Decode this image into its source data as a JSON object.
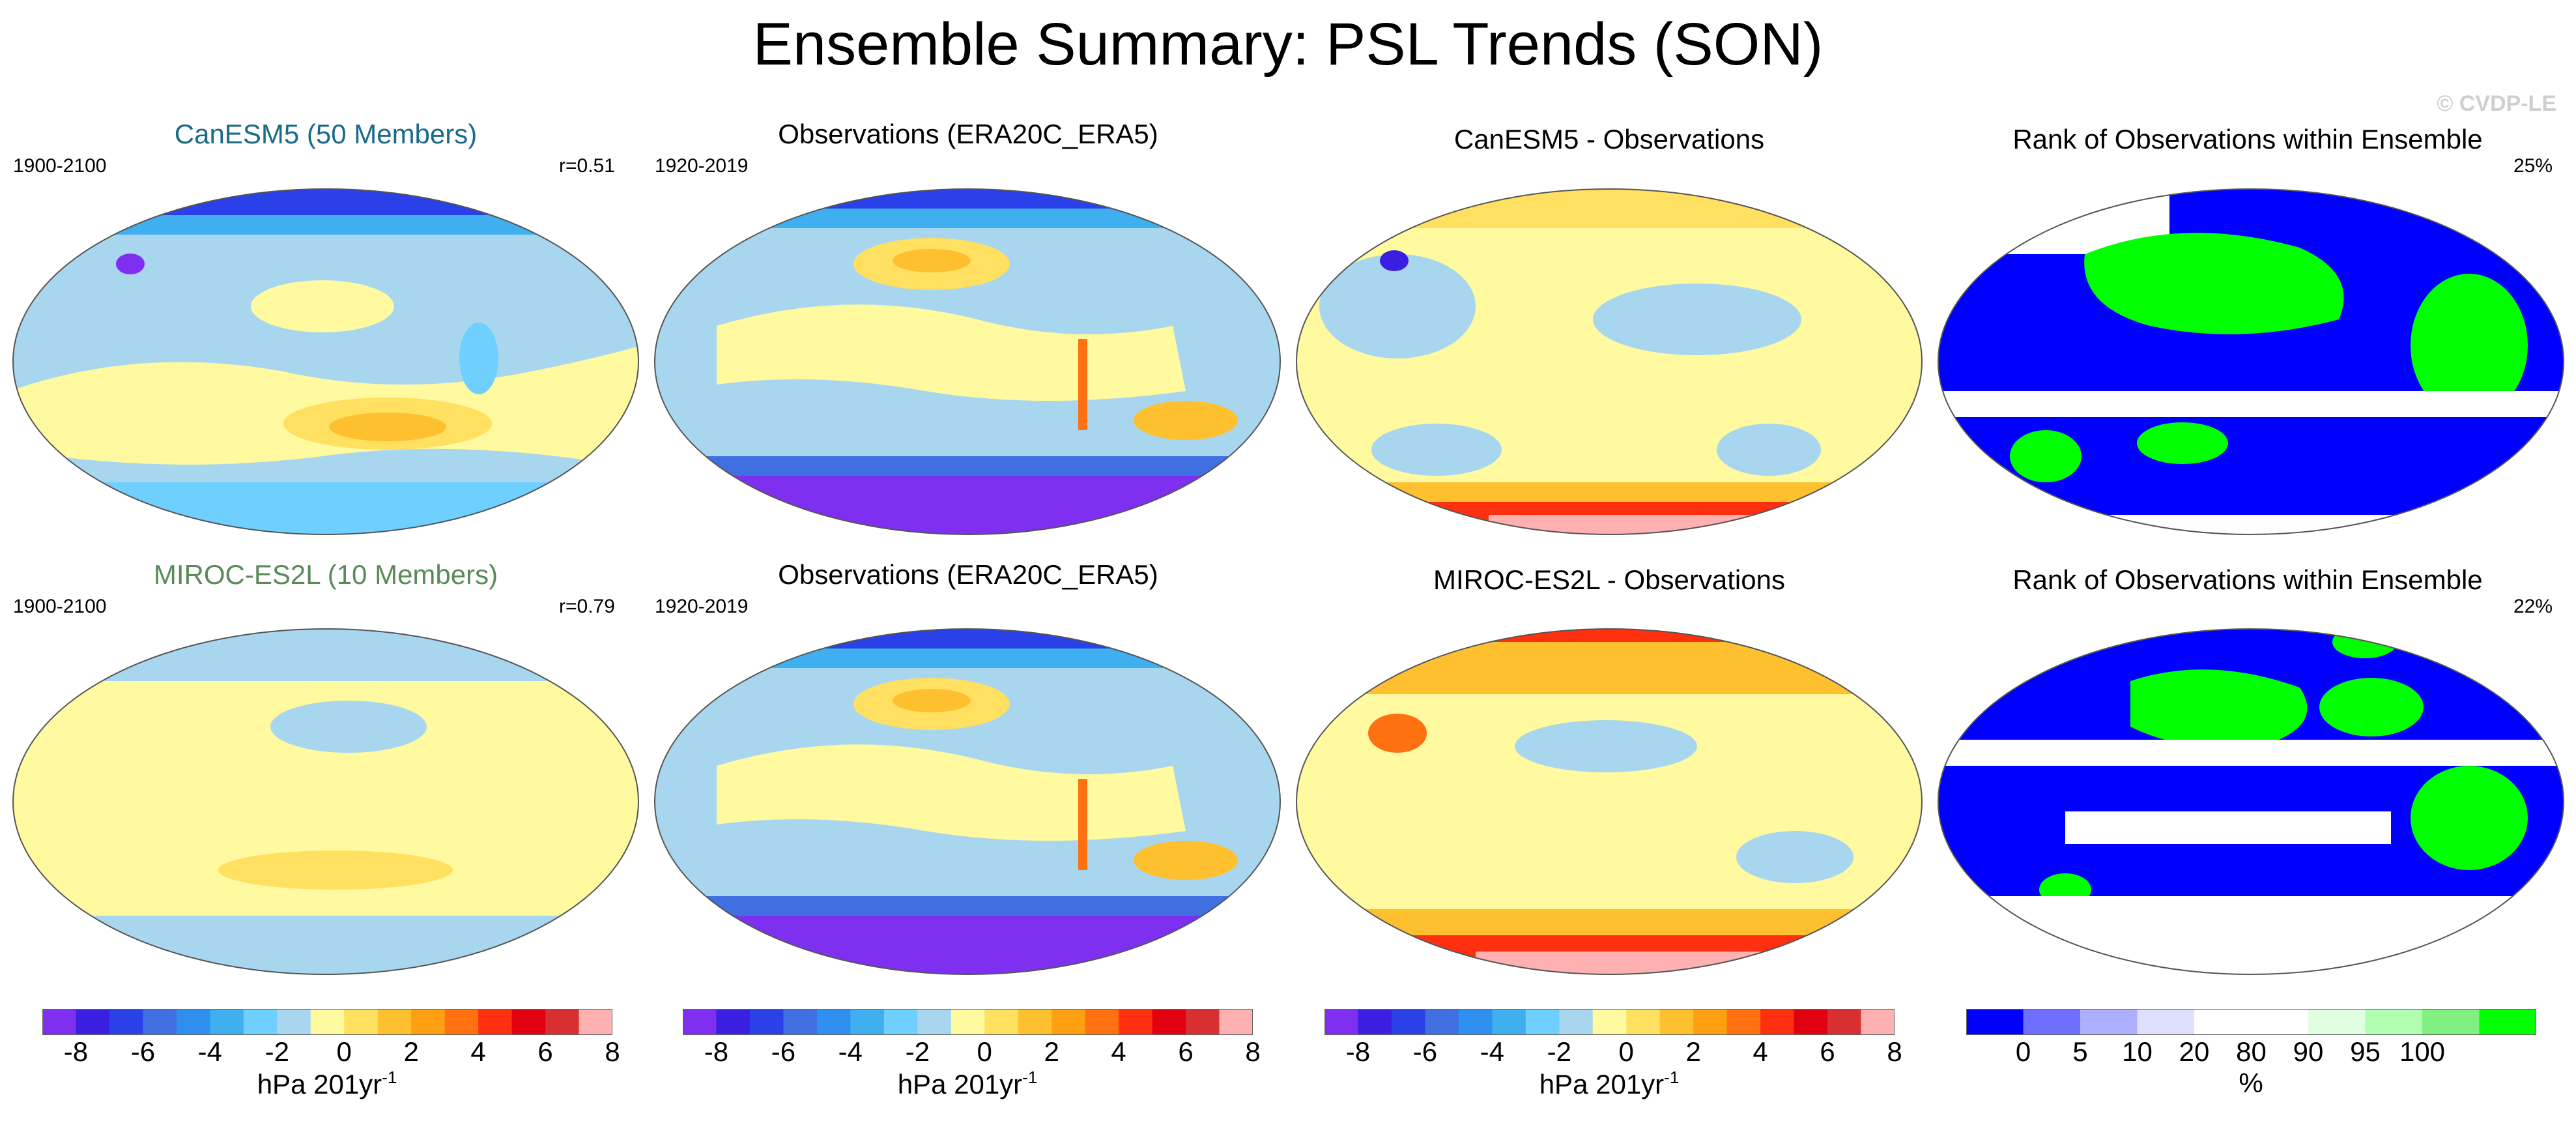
{
  "title": "Ensemble Summary: PSL Trends (SON)",
  "watermark": "© CVDP-LE",
  "rows": [
    {
      "model_title": "CanESM5 (50 Members)",
      "model_title_color": "#1a6a8a",
      "model_period": "1900-2100",
      "model_corr": "r=0.51",
      "obs_title": "Observations (ERA20C_ERA5)",
      "obs_period": "1920-2019",
      "diff_title": "CanESM5 - Observations",
      "rank_title": "Rank of Observations within Ensemble",
      "rank_value": "25%"
    },
    {
      "model_title": "MIROC-ES2L (10 Members)",
      "model_title_color": "#5a8a5a",
      "model_period": "1900-2100",
      "model_corr": "r=0.79",
      "obs_title": "Observations (ERA20C_ERA5)",
      "obs_period": "1920-2019",
      "diff_title": "MIROC-ES2L - Observations",
      "rank_title": "Rank of Observations within Ensemble",
      "rank_value": "22%"
    }
  ],
  "trend_colorbar": {
    "colors": [
      "#7f2fef",
      "#3a1fe0",
      "#2a40e8",
      "#3f6fe0",
      "#2f8fef",
      "#3fafef",
      "#6fcfff",
      "#a8d6ef",
      "#fff9a0",
      "#ffe060",
      "#ffc030",
      "#ffa010",
      "#ff7010",
      "#ff3010",
      "#e00010",
      "#d83030",
      "#ffb0b0"
    ],
    "ticks": [
      "-8",
      "-6",
      "-4",
      "-2",
      "0",
      "2",
      "4",
      "6",
      "8"
    ],
    "unit": "hPa 201yr",
    "unit_exponent": "-1"
  },
  "rank_colorbar": {
    "colors": [
      "#0000ff",
      "#6f6fff",
      "#afafff",
      "#dfdfff",
      "#ffffff",
      "#ffffff",
      "#e0ffe0",
      "#b0ffb0",
      "#80f080",
      "#00ff00"
    ],
    "ticks": [
      "0",
      "5",
      "10",
      "20",
      "80",
      "90",
      "95",
      "100"
    ],
    "unit": "%"
  },
  "palette": {
    "trend_bg": "#a8d6ef",
    "yellow": "#fff9a0",
    "orange_light": "#ffe060",
    "orange": "#ffc030",
    "blue_mid": "#6fcfff",
    "blue_deep": "#2f8fef",
    "violet": "#7f2fef",
    "red": "#ff3010",
    "rank_blue": "#0000ff",
    "rank_green": "#00ff00",
    "rank_white": "#ffffff"
  }
}
